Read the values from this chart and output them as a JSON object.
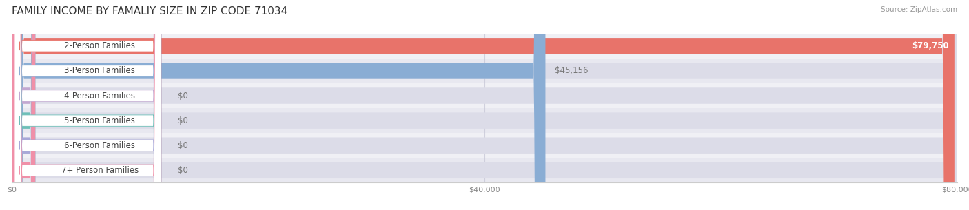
{
  "title": "FAMILY INCOME BY FAMALIY SIZE IN ZIP CODE 71034",
  "source": "Source: ZipAtlas.com",
  "categories": [
    "2-Person Families",
    "3-Person Families",
    "4-Person Families",
    "5-Person Families",
    "6-Person Families",
    "7+ Person Families"
  ],
  "values": [
    79750,
    45156,
    0,
    0,
    0,
    0
  ],
  "bar_colors": [
    "#E8736A",
    "#8AADD4",
    "#C3A8D1",
    "#6DBFB8",
    "#A8A8D8",
    "#F090A8"
  ],
  "row_bg_colors": [
    "#F0F0F5",
    "#E8E8F0"
  ],
  "bar_bg_color": "#DCDCE8",
  "xlim_max": 80000,
  "xticks": [
    0,
    40000,
    80000
  ],
  "xtick_labels": [
    "$0",
    "$40,000",
    "$80,000"
  ],
  "title_fontsize": 11,
  "label_fontsize": 8.5,
  "tick_fontsize": 8,
  "bar_height": 0.65,
  "background_color": "#FFFFFF",
  "grid_color": "#C8C8D8",
  "pill_text_color": "#444444",
  "value_color_inside": "#FFFFFF",
  "value_color_outside": "#777777",
  "source_color": "#999999"
}
